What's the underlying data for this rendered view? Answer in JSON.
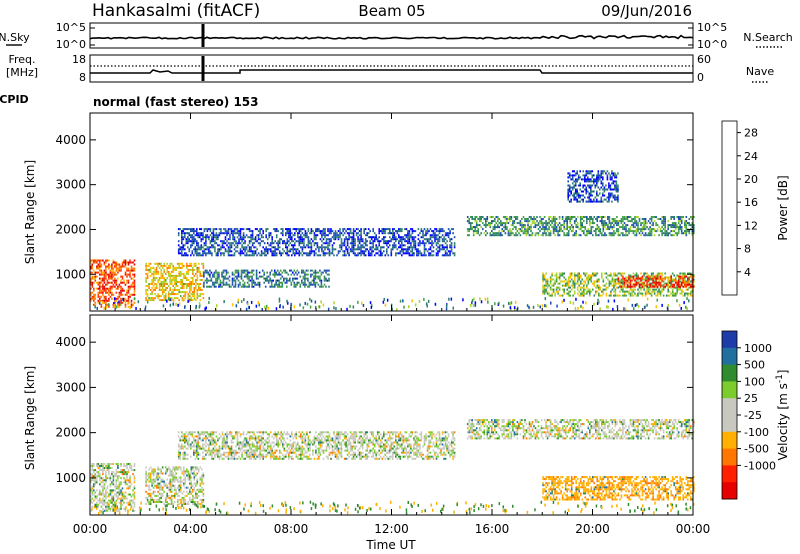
{
  "header": {
    "station": "Hankasalmi (fitACF)",
    "beam": "Beam 05",
    "date": "09/Jun/2016"
  },
  "noise_panel": {
    "left_label": "N.Sky",
    "right_label": "N.Search",
    "left_ticks": [
      "10^5",
      "10^0"
    ],
    "right_ticks": [
      "10^5",
      "10^0"
    ]
  },
  "freq_panel": {
    "left_label_1": "Freq.",
    "left_label_2": "[MHz]",
    "left_ticks": [
      "18",
      "8"
    ],
    "right_label": "Nave",
    "right_ticks": [
      "60",
      "0"
    ]
  },
  "cpid": {
    "label": "CPID",
    "mode": "normal (fast stereo) 153"
  },
  "colors": {
    "power_scale": [
      "#0000ff",
      "#1a4db3",
      "#2e7d6e",
      "#3fa045",
      "#a8d42f",
      "#ffc000",
      "#ff8000",
      "#ff3300",
      "#e60000"
    ],
    "velocity_scale": [
      "#1e3ca8",
      "#1f6f9f",
      "#2e8b2e",
      "#7ccc2e",
      "#c8c8c0",
      "#c8c8c0",
      "#ffb000",
      "#ff7700",
      "#ff2000",
      "#e60000"
    ]
  },
  "chart_data": [
    {
      "type": "heatmap",
      "title": "",
      "xlabel": "Time UT",
      "ylabel": "Slant Range [km]",
      "x_ticks": [
        "00:00",
        "04:00",
        "08:00",
        "12:00",
        "16:00",
        "20:00",
        "00:00"
      ],
      "xlim": [
        "00:00",
        "24:00"
      ],
      "y_ticks": [
        "1000",
        "2000",
        "3000",
        "4000"
      ],
      "ylim": [
        180,
        4600
      ],
      "colorbar": {
        "label": "Power [dB]",
        "ticks": [
          "4",
          "8",
          "12",
          "16",
          "20",
          "24",
          "28"
        ],
        "range": [
          0,
          30
        ]
      },
      "regions": [
        {
          "t_start": 0.0,
          "t_end": 1.8,
          "r_min": 250,
          "r_max": 1300,
          "level": 24
        },
        {
          "t_start": 2.2,
          "t_end": 4.5,
          "r_min": 400,
          "r_max": 1250,
          "level": 18
        },
        {
          "t_start": 4.5,
          "t_end": 9.5,
          "r_min": 700,
          "r_max": 1100,
          "level": 8
        },
        {
          "t_start": 3.5,
          "t_end": 14.5,
          "r_min": 1400,
          "r_max": 2000,
          "level": 5
        },
        {
          "t_start": 15.0,
          "t_end": 24.0,
          "r_min": 1850,
          "r_max": 2300,
          "level": 10
        },
        {
          "t_start": 18.0,
          "t_end": 24.0,
          "r_min": 500,
          "r_max": 1000,
          "level": 14
        },
        {
          "t_start": 21.0,
          "t_end": 24.0,
          "r_min": 700,
          "r_max": 950,
          "level": 26
        },
        {
          "t_start": 19.0,
          "t_end": 21.0,
          "r_min": 2600,
          "r_max": 3300,
          "level": 5
        }
      ]
    },
    {
      "type": "heatmap",
      "title": "",
      "xlabel": "Time UT",
      "ylabel": "Slant Range [km]",
      "x_ticks": [
        "00:00",
        "04:00",
        "08:00",
        "12:00",
        "16:00",
        "20:00",
        "00:00"
      ],
      "xlim": [
        "00:00",
        "24:00"
      ],
      "y_ticks": [
        "1000",
        "2000",
        "3000",
        "4000"
      ],
      "ylim": [
        180,
        4600
      ],
      "colorbar": {
        "label": "Velocity [m s^-1]",
        "ticks": [
          "1000",
          "500",
          "100",
          "25",
          "-25",
          "-100",
          "-500",
          "-1000"
        ]
      },
      "regions": [
        {
          "t_start": 0.0,
          "t_end": 1.8,
          "r_min": 250,
          "r_max": 1300,
          "level": 0
        },
        {
          "t_start": 2.2,
          "t_end": 4.5,
          "r_min": 400,
          "r_max": 1250,
          "level": 0
        },
        {
          "t_start": 3.5,
          "t_end": 14.5,
          "r_min": 1400,
          "r_max": 2000,
          "level": 0
        },
        {
          "t_start": 15.0,
          "t_end": 24.0,
          "r_min": 1850,
          "r_max": 2300,
          "level": 0
        },
        {
          "t_start": 18.0,
          "t_end": 24.0,
          "r_min": 500,
          "r_max": 1000,
          "level": -80
        }
      ]
    }
  ]
}
